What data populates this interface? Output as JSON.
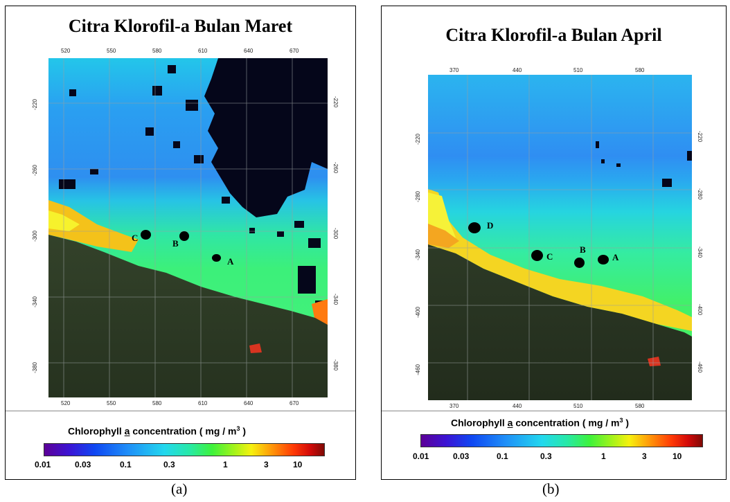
{
  "panels": [
    {
      "title": "Citra Klorofil-a Bulan Maret",
      "x_ticks": [
        "520",
        "550",
        "580",
        "610",
        "640",
        "670"
      ],
      "y_ticks": [
        "-220",
        "-260",
        "-300",
        "-340",
        "-380"
      ],
      "points": [
        {
          "label": "C"
        },
        {
          "label": "B"
        },
        {
          "label": "A"
        }
      ],
      "caption": "(a)"
    },
    {
      "title": "Citra Klorofil-a Bulan April",
      "x_ticks": [
        "370",
        "440",
        "510",
        "580"
      ],
      "y_ticks": [
        "-220",
        "-280",
        "-340",
        "-400",
        "-460"
      ],
      "points": [
        {
          "label": "D"
        },
        {
          "label": "C"
        },
        {
          "label": "B"
        },
        {
          "label": "A"
        }
      ],
      "caption": "(b)"
    }
  ],
  "legend": {
    "title": "Chlorophyll a concentration ( mg / m",
    "underlined": "a",
    "unit_power": "3",
    "title_end": " )",
    "ticks": [
      "0.01",
      "0.03",
      "0.1",
      "0.3",
      "1",
      "3",
      "10"
    ]
  },
  "colors": {
    "ocean_blue": "#2aa1f3",
    "ocean_cyan": "#25d3e9",
    "coast_green": "#33f08a",
    "coast_yellow": "#f3e30f",
    "land": "#2f3b24",
    "cloud": "#05061b"
  }
}
